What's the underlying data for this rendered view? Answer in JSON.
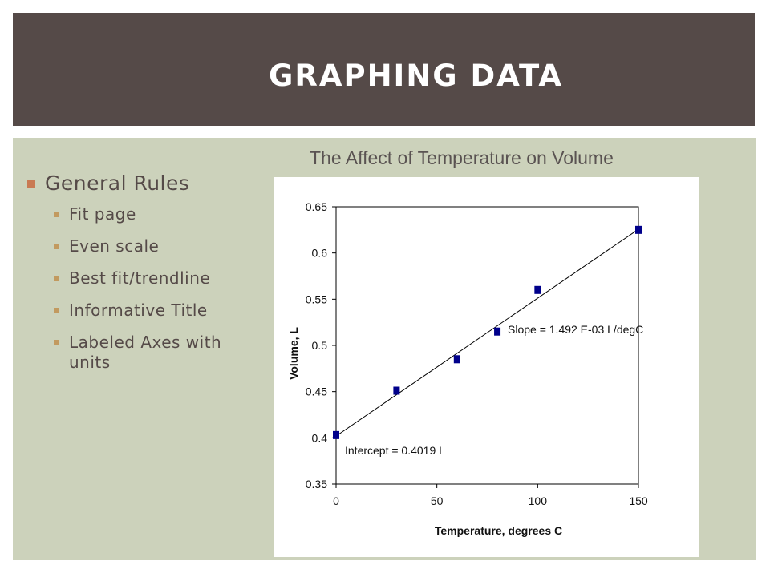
{
  "slide": {
    "title": "GRAPHING DATA",
    "colors": {
      "title_bar": "#554a48",
      "content_bg": "#ccd2bb",
      "bullet_marker": "#c97a53",
      "data_point": "#00008b"
    }
  },
  "bullets": {
    "heading": "General Rules",
    "items": [
      "Fit page",
      "Even scale",
      "Best fit/trendline",
      "Informative Title",
      "Labeled Axes with units"
    ]
  },
  "chart_data": {
    "type": "scatter",
    "title": "The Affect of Temperature on Volume",
    "xlabel": "Temperature, degrees C",
    "ylabel": "Volume, L",
    "xlim": [
      0,
      150
    ],
    "ylim": [
      0.35,
      0.65
    ],
    "x_ticks": [
      "0",
      "50",
      "100",
      "150"
    ],
    "y_ticks": [
      "0.35",
      "0.4",
      "0.45",
      "0.5",
      "0.55",
      "0.6",
      "0.65"
    ],
    "grid": false,
    "legend": "none",
    "series": [
      {
        "x": [
          0,
          30,
          60,
          80,
          100,
          150
        ],
        "y": [
          0.403,
          0.451,
          0.485,
          0.515,
          0.56,
          0.625
        ]
      }
    ],
    "trendline": {
      "slope": 0.001492,
      "intercept": 0.4019
    },
    "annotations": [
      "Slope = 1.492 E-03 L/degC",
      "Intercept = 0.4019 L"
    ]
  }
}
